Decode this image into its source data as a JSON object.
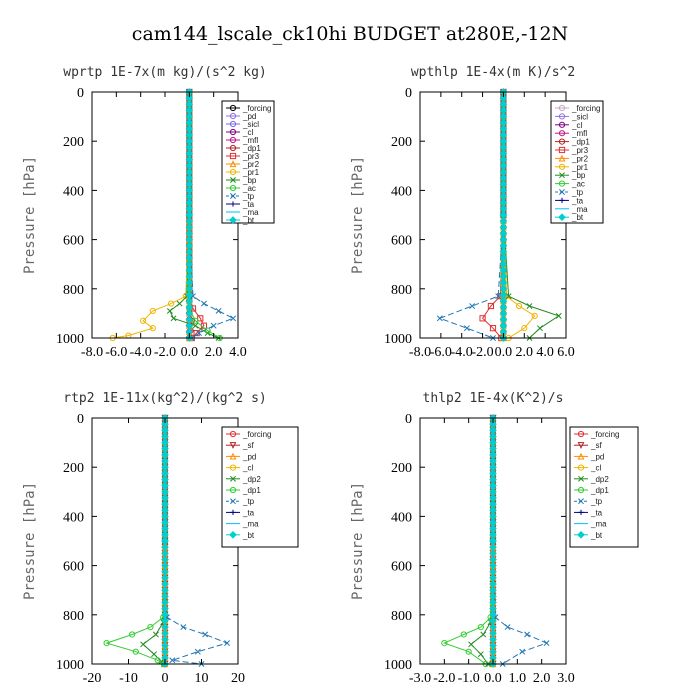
{
  "title": "cam144_lscale_ck10hi  BUDGET at280E,-12N",
  "chart_data": [
    {
      "type": "line",
      "title": "wprtp  1E-7x(m kg)/(s^2 kg)",
      "ylabel": "Pressure [hPa]",
      "xlim": [
        -8,
        4
      ],
      "ylim": [
        1000,
        0
      ],
      "xticks": [
        "-8.0",
        "-6.0",
        "-4.0",
        "-2.0",
        "0.0",
        "2.0",
        "4.0"
      ],
      "xtick_values": [
        -8,
        -6,
        -4,
        -2,
        0,
        2,
        4
      ],
      "yticks": [
        "0",
        "200",
        "400",
        "600",
        "800",
        "1000"
      ],
      "ytick_values": [
        0,
        200,
        400,
        600,
        800,
        1000
      ],
      "legend_position": "top-right",
      "series": [
        {
          "name": "_forcing",
          "color": "#000000",
          "dash": "",
          "marker": "o",
          "x": [
            0,
            0,
            0,
            0,
            0
          ],
          "y": [
            0,
            300,
            600,
            900,
            1000
          ]
        },
        {
          "name": "_pd",
          "color": "#9370db",
          "dash": "",
          "marker": "o",
          "x": [
            0,
            0,
            0
          ],
          "y": [
            0,
            500,
            1000
          ]
        },
        {
          "name": "_sicl",
          "color": "#7b68ee",
          "dash": "",
          "marker": "o",
          "x": [
            0,
            0,
            0
          ],
          "y": [
            0,
            500,
            1000
          ]
        },
        {
          "name": "_cl",
          "color": "#800080",
          "dash": "",
          "marker": "o",
          "x": [
            0,
            0,
            0
          ],
          "y": [
            0,
            500,
            1000
          ]
        },
        {
          "name": "_mfl",
          "color": "#c71585",
          "dash": "",
          "marker": "o",
          "x": [
            0,
            0,
            0
          ],
          "y": [
            0,
            500,
            1000
          ]
        },
        {
          "name": "_dp1",
          "color": "#b22222",
          "dash": "",
          "marker": "o",
          "x": [
            0,
            0,
            0,
            0.05,
            0.2,
            0.1,
            0
          ],
          "y": [
            0,
            500,
            820,
            880,
            930,
            970,
            1000
          ]
        },
        {
          "name": "_pr3",
          "color": "#e03030",
          "dash": "",
          "marker": "s",
          "x": [
            0,
            0,
            0,
            0.3,
            0.9,
            1.2,
            0.6,
            0.2
          ],
          "y": [
            0,
            500,
            830,
            880,
            920,
            950,
            980,
            1000
          ]
        },
        {
          "name": "_pr2",
          "color": "#ff8c00",
          "dash": "",
          "marker": "^",
          "x": [
            0,
            0,
            0
          ],
          "y": [
            0,
            500,
            1000
          ]
        },
        {
          "name": "_pr1",
          "color": "#f0b400",
          "dash": "",
          "marker": "o",
          "x": [
            0,
            0,
            -0.3,
            -1.5,
            -3.0,
            -3.8,
            -3.0,
            -5.0,
            -6.3
          ],
          "y": [
            0,
            500,
            830,
            860,
            890,
            930,
            960,
            990,
            1000
          ]
        },
        {
          "name": "_bp",
          "color": "#228b22",
          "dash": "",
          "marker": "x",
          "x": [
            0,
            0,
            -0.2,
            -0.8,
            -1.6,
            -1.3,
            0.5,
            1.5,
            2.4
          ],
          "y": [
            0,
            500,
            830,
            860,
            890,
            920,
            950,
            980,
            1000
          ]
        },
        {
          "name": "_ac",
          "color": "#32cd32",
          "dash": "",
          "marker": "o",
          "x": [
            0,
            0,
            0,
            0.5,
            1.5,
            2.5
          ],
          "y": [
            0,
            500,
            880,
            930,
            970,
            1000
          ]
        },
        {
          "name": "_tp",
          "color": "#1f77b4",
          "dash": "6,3",
          "marker": "x",
          "x": [
            0,
            0,
            0.3,
            1.2,
            2.4,
            3.6,
            2.0,
            0.8,
            0.2
          ],
          "y": [
            0,
            500,
            830,
            860,
            890,
            920,
            950,
            980,
            1000
          ]
        },
        {
          "name": "_ta",
          "color": "#000080",
          "dash": "",
          "marker": "+",
          "x": [
            0,
            0,
            0
          ],
          "y": [
            0,
            500,
            1000
          ]
        },
        {
          "name": "_ma",
          "color": "#00bfff",
          "dash": "",
          "marker": "",
          "x": [
            0,
            0,
            0
          ],
          "y": [
            0,
            500,
            1000
          ]
        },
        {
          "name": "_bt",
          "color": "#00ced1",
          "dash": "",
          "marker": "D",
          "x": [
            0,
            0,
            0
          ],
          "y": [
            0,
            500,
            1000
          ]
        }
      ]
    },
    {
      "type": "line",
      "title": "wpthlp  1E-4x(m K)/s^2",
      "ylabel": "Pressure [hPa]",
      "xlim": [
        -8,
        6
      ],
      "ylim": [
        1000,
        0
      ],
      "xticks": [
        "-8.0",
        "-6.0",
        "-4.0",
        "-2.0",
        "0.0",
        "2.0",
        "4.0",
        "6.0"
      ],
      "xtick_values": [
        -8,
        -6,
        -4,
        -2,
        0,
        2,
        4,
        6
      ],
      "yticks": [
        "0",
        "200",
        "400",
        "600",
        "800",
        "1000"
      ],
      "ytick_values": [
        0,
        200,
        400,
        600,
        800,
        1000
      ],
      "legend_position": "top-right",
      "series": [
        {
          "name": "_forcing",
          "color": "#c8a2c8",
          "dash": "",
          "marker": "o",
          "x": [
            0,
            0,
            0,
            0,
            0
          ],
          "y": [
            0,
            300,
            600,
            900,
            1000
          ]
        },
        {
          "name": "_sicl",
          "color": "#9370db",
          "dash": "",
          "marker": "o",
          "x": [
            0,
            0,
            0
          ],
          "y": [
            0,
            500,
            1000
          ]
        },
        {
          "name": "_cl",
          "color": "#800080",
          "dash": "",
          "marker": "o",
          "x": [
            0,
            0,
            0
          ],
          "y": [
            0,
            500,
            1000
          ]
        },
        {
          "name": "_mfl",
          "color": "#c71585",
          "dash": "",
          "marker": "o",
          "x": [
            0,
            0,
            0
          ],
          "y": [
            0,
            500,
            1000
          ]
        },
        {
          "name": "_dp1",
          "color": "#b22222",
          "dash": "",
          "marker": "o",
          "x": [
            0,
            0,
            0,
            0,
            0
          ],
          "y": [
            0,
            500,
            850,
            950,
            1000
          ]
        },
        {
          "name": "_pr3",
          "color": "#e03030",
          "dash": "",
          "marker": "s",
          "x": [
            0,
            0,
            -0.3,
            -1.2,
            -2.0,
            -1.0,
            -0.2
          ],
          "y": [
            0,
            500,
            830,
            870,
            920,
            960,
            1000
          ]
        },
        {
          "name": "_pr2",
          "color": "#ff8c00",
          "dash": "",
          "marker": "^",
          "x": [
            0,
            0,
            0
          ],
          "y": [
            0,
            500,
            1000
          ]
        },
        {
          "name": "_pr1",
          "color": "#f0b400",
          "dash": "",
          "marker": "o",
          "x": [
            0,
            0,
            0.3,
            1.5,
            3.0,
            2.0,
            0.5
          ],
          "y": [
            0,
            500,
            830,
            870,
            910,
            960,
            1000
          ]
        },
        {
          "name": "_bp",
          "color": "#228b22",
          "dash": "",
          "marker": "x",
          "x": [
            0,
            0,
            0.5,
            2.5,
            5.3,
            3.5,
            2.5
          ],
          "y": [
            0,
            500,
            830,
            870,
            910,
            960,
            1000
          ]
        },
        {
          "name": "_ac",
          "color": "#32cd32",
          "dash": "",
          "marker": "o",
          "x": [
            0,
            0,
            0
          ],
          "y": [
            0,
            500,
            1000
          ]
        },
        {
          "name": "_tp",
          "color": "#1f77b4",
          "dash": "6,3",
          "marker": "x",
          "x": [
            0,
            0,
            -0.5,
            -3.0,
            -6.1,
            -3.5,
            -1.0
          ],
          "y": [
            0,
            500,
            830,
            870,
            920,
            960,
            1000
          ]
        },
        {
          "name": "_ta",
          "color": "#000080",
          "dash": "",
          "marker": "+",
          "x": [
            0,
            0,
            0
          ],
          "y": [
            0,
            500,
            1000
          ]
        },
        {
          "name": "_ma",
          "color": "#00bfff",
          "dash": "",
          "marker": "",
          "x": [
            0,
            0,
            0
          ],
          "y": [
            0,
            500,
            1000
          ]
        },
        {
          "name": "_bt",
          "color": "#00ced1",
          "dash": "",
          "marker": "D",
          "x": [
            0,
            0,
            0
          ],
          "y": [
            0,
            500,
            1000
          ]
        }
      ]
    },
    {
      "type": "line",
      "title": "rtp2  1E-11x(kg^2)/(kg^2 s)",
      "ylabel": "Pressure [hPa]",
      "xlim": [
        -20,
        20
      ],
      "ylim": [
        1000,
        0
      ],
      "xticks": [
        "-20",
        "-10",
        "0",
        "10",
        "20"
      ],
      "xtick_values": [
        -20,
        -10,
        0,
        10,
        20
      ],
      "yticks": [
        "0",
        "200",
        "400",
        "600",
        "800",
        "1000"
      ],
      "ytick_values": [
        0,
        200,
        400,
        600,
        800,
        1000
      ],
      "legend_position": "top-right",
      "series": [
        {
          "name": "_forcing",
          "color": "#e03030",
          "dash": "",
          "marker": "o",
          "x": [
            0,
            0,
            0,
            0,
            0
          ],
          "y": [
            0,
            300,
            600,
            900,
            1000
          ]
        },
        {
          "name": "_sf",
          "color": "#b22222",
          "dash": "",
          "marker": "v",
          "x": [
            0,
            0,
            0
          ],
          "y": [
            0,
            500,
            1000
          ]
        },
        {
          "name": "_pd",
          "color": "#ff8c00",
          "dash": "",
          "marker": "^",
          "x": [
            0,
            0,
            0
          ],
          "y": [
            0,
            500,
            1000
          ]
        },
        {
          "name": "_cl",
          "color": "#f0b400",
          "dash": "",
          "marker": "o",
          "x": [
            0,
            0,
            0
          ],
          "y": [
            0,
            500,
            1000
          ]
        },
        {
          "name": "_dp2",
          "color": "#228b22",
          "dash": "",
          "marker": "x",
          "x": [
            0,
            0,
            -0.5,
            -2.5,
            -6,
            -3,
            -1,
            -0.3
          ],
          "y": [
            0,
            500,
            830,
            880,
            920,
            960,
            990,
            1000
          ]
        },
        {
          "name": "_dp1",
          "color": "#32cd32",
          "dash": "",
          "marker": "o",
          "x": [
            0,
            0,
            -0.5,
            -4,
            -9,
            -16,
            -8,
            -2,
            -0.3
          ],
          "y": [
            0,
            500,
            810,
            850,
            880,
            915,
            950,
            985,
            1000
          ]
        },
        {
          "name": "_tp",
          "color": "#1f77b4",
          "dash": "6,3",
          "marker": "x",
          "x": [
            0,
            0,
            0.5,
            5,
            11,
            17,
            9,
            2,
            10
          ],
          "y": [
            0,
            500,
            810,
            850,
            880,
            915,
            950,
            985,
            1000
          ]
        },
        {
          "name": "_ta",
          "color": "#000080",
          "dash": "",
          "marker": "+",
          "x": [
            0,
            0,
            0
          ],
          "y": [
            0,
            500,
            1000
          ]
        },
        {
          "name": "_ma",
          "color": "#00bfff",
          "dash": "",
          "marker": "",
          "x": [
            0,
            0,
            0
          ],
          "y": [
            0,
            500,
            1000
          ]
        },
        {
          "name": "_bt",
          "color": "#00ced1",
          "dash": "",
          "marker": "D",
          "x": [
            0,
            0,
            0
          ],
          "y": [
            0,
            500,
            1000
          ]
        }
      ]
    },
    {
      "type": "line",
      "title": "thlp2  1E-4x(K^2)/s",
      "ylabel": "Pressure [hPa]",
      "xlim": [
        -3,
        3
      ],
      "ylim": [
        1000,
        0
      ],
      "xticks": [
        "-3.0",
        "-2.0",
        "-1.0",
        "0.0",
        "1.0",
        "2.0",
        "3.0"
      ],
      "xtick_values": [
        -3,
        -2,
        -1,
        0,
        1,
        2,
        3
      ],
      "yticks": [
        "0",
        "200",
        "400",
        "600",
        "800",
        "1000"
      ],
      "ytick_values": [
        0,
        200,
        400,
        600,
        800,
        1000
      ],
      "legend_position": "top-right",
      "series": [
        {
          "name": "_forcing",
          "color": "#e03030",
          "dash": "",
          "marker": "o",
          "x": [
            0,
            0,
            0,
            0,
            0
          ],
          "y": [
            0,
            300,
            600,
            900,
            1000
          ]
        },
        {
          "name": "_sf",
          "color": "#b22222",
          "dash": "",
          "marker": "v",
          "x": [
            0,
            0,
            0
          ],
          "y": [
            0,
            500,
            1000
          ]
        },
        {
          "name": "_pd",
          "color": "#ff8c00",
          "dash": "",
          "marker": "^",
          "x": [
            0,
            0,
            0
          ],
          "y": [
            0,
            500,
            1000
          ]
        },
        {
          "name": "_cl",
          "color": "#f0b400",
          "dash": "",
          "marker": "o",
          "x": [
            0,
            0,
            0
          ],
          "y": [
            0,
            500,
            1000
          ]
        },
        {
          "name": "_dp2",
          "color": "#228b22",
          "dash": "",
          "marker": "x",
          "x": [
            0,
            0,
            -0.1,
            -0.4,
            -0.9,
            -0.5,
            -0.2
          ],
          "y": [
            0,
            500,
            830,
            880,
            920,
            960,
            1000
          ]
        },
        {
          "name": "_dp1",
          "color": "#32cd32",
          "dash": "",
          "marker": "o",
          "x": [
            0,
            0,
            -0.1,
            -0.5,
            -1.2,
            -2.0,
            -1.0,
            -0.3
          ],
          "y": [
            0,
            500,
            810,
            850,
            880,
            915,
            950,
            1000
          ]
        },
        {
          "name": "_tp",
          "color": "#1f77b4",
          "dash": "6,3",
          "marker": "x",
          "x": [
            0,
            0,
            0.1,
            0.6,
            1.4,
            2.2,
            1.2,
            0.4
          ],
          "y": [
            0,
            500,
            810,
            850,
            880,
            915,
            950,
            1000
          ]
        },
        {
          "name": "_ta",
          "color": "#000080",
          "dash": "",
          "marker": "+",
          "x": [
            0,
            0,
            0
          ],
          "y": [
            0,
            500,
            1000
          ]
        },
        {
          "name": "_ma",
          "color": "#00bfff",
          "dash": "",
          "marker": "",
          "x": [
            0,
            0,
            0
          ],
          "y": [
            0,
            500,
            1000
          ]
        },
        {
          "name": "_bt",
          "color": "#00ced1",
          "dash": "",
          "marker": "D",
          "x": [
            0,
            0,
            0
          ],
          "y": [
            0,
            500,
            1000
          ]
        }
      ]
    }
  ]
}
